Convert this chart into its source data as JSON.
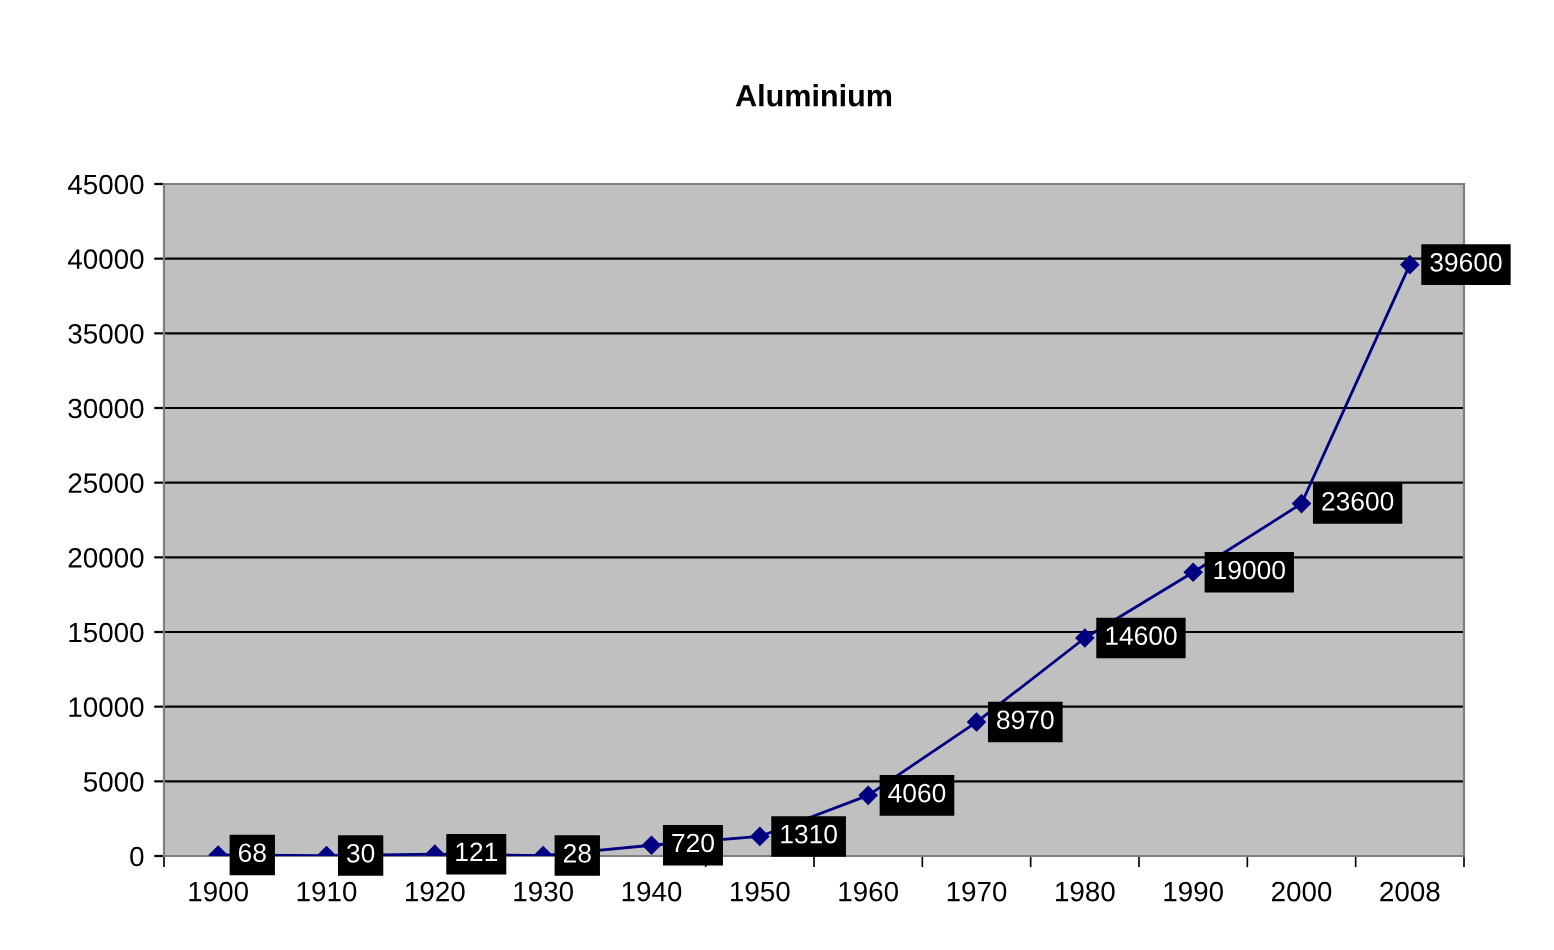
{
  "chart_data": {
    "type": "line",
    "title": "Aluminium",
    "categories": [
      "1900",
      "1910",
      "1920",
      "1930",
      "1940",
      "1950",
      "1960",
      "1970",
      "1980",
      "1990",
      "2000",
      "2008"
    ],
    "series": [
      {
        "color": "#000080",
        "values": [
          68,
          30,
          121,
          28,
          720,
          1310,
          4060,
          8970,
          14600,
          19000,
          23600,
          39600
        ]
      }
    ],
    "ylim": [
      0,
      45000
    ],
    "yticks": [
      0,
      5000,
      10000,
      15000,
      20000,
      25000,
      30000,
      35000,
      40000,
      45000
    ],
    "grid": "y",
    "marker": "diamond",
    "line_style": "solid",
    "data_labels": true,
    "legend": false
  }
}
